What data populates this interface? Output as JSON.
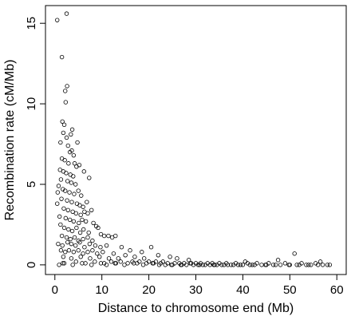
{
  "chart_data": {
    "type": "scatter",
    "title": "",
    "xlabel": "Distance to chromosome end (Mb)",
    "ylabel": "Recombination rate (cM/Mb)",
    "xlim": [
      -2,
      62
    ],
    "ylim": [
      -0.6,
      16.1
    ],
    "xticks": [
      0,
      10,
      20,
      30,
      40,
      50,
      60
    ],
    "yticks": [
      0,
      5,
      10,
      15
    ],
    "grid": false,
    "legend": "none",
    "marker": "open-circle",
    "marker_color": "#000000",
    "points": [
      [
        0.5,
        15.2
      ],
      [
        2.5,
        15.6
      ],
      [
        1.5,
        12.9
      ],
      [
        2.6,
        11.1
      ],
      [
        2.2,
        10.8
      ],
      [
        2.3,
        10.1
      ],
      [
        1.6,
        8.9
      ],
      [
        2.0,
        8.7
      ],
      [
        1.8,
        8.2
      ],
      [
        3.4,
        8.1
      ],
      [
        3.7,
        8.4
      ],
      [
        2.5,
        7.9
      ],
      [
        1.2,
        7.6
      ],
      [
        2.8,
        7.4
      ],
      [
        4.8,
        7.6
      ],
      [
        3.2,
        7.0
      ],
      [
        3.6,
        7.1
      ],
      [
        4.0,
        6.8
      ],
      [
        1.5,
        6.6
      ],
      [
        2.1,
        6.5
      ],
      [
        2.9,
        6.3
      ],
      [
        4.2,
        6.3
      ],
      [
        4.6,
        6.1
      ],
      [
        5.2,
        6.2
      ],
      [
        1.1,
        5.9
      ],
      [
        1.8,
        5.8
      ],
      [
        2.4,
        5.7
      ],
      [
        3.3,
        5.6
      ],
      [
        3.9,
        5.5
      ],
      [
        1.3,
        5.3
      ],
      [
        2.7,
        5.2
      ],
      [
        3.5,
        5.1
      ],
      [
        4.4,
        5.0
      ],
      [
        6.2,
        5.8
      ],
      [
        7.3,
        5.4
      ],
      [
        0.8,
        4.9
      ],
      [
        1.7,
        4.7
      ],
      [
        2.2,
        4.6
      ],
      [
        3.1,
        4.5
      ],
      [
        4.1,
        4.4
      ],
      [
        5.0,
        4.6
      ],
      [
        5.6,
        4.3
      ],
      [
        0.6,
        4.5
      ],
      [
        1.4,
        4.1
      ],
      [
        2.6,
        4.0
      ],
      [
        3.6,
        3.9
      ],
      [
        4.7,
        3.8
      ],
      [
        5.3,
        3.7
      ],
      [
        6.0,
        3.6
      ],
      [
        6.8,
        3.9
      ],
      [
        0.5,
        3.8
      ],
      [
        1.9,
        3.5
      ],
      [
        2.8,
        3.4
      ],
      [
        3.8,
        3.3
      ],
      [
        4.5,
        3.2
      ],
      [
        5.5,
        3.1
      ],
      [
        6.3,
        3.3
      ],
      [
        7.0,
        3.2
      ],
      [
        7.8,
        3.4
      ],
      [
        1.0,
        3.0
      ],
      [
        2.3,
        2.9
      ],
      [
        3.2,
        2.8
      ],
      [
        4.0,
        2.7
      ],
      [
        5.1,
        2.6
      ],
      [
        5.8,
        2.8
      ],
      [
        6.6,
        2.7
      ],
      [
        8.2,
        2.6
      ],
      [
        8.8,
        2.4
      ],
      [
        1.2,
        2.5
      ],
      [
        2.0,
        2.3
      ],
      [
        2.9,
        2.2
      ],
      [
        3.7,
        2.1
      ],
      [
        4.6,
        2.3
      ],
      [
        5.4,
        2.0
      ],
      [
        6.1,
        2.2
      ],
      [
        7.2,
        2.0
      ],
      [
        9.2,
        2.3
      ],
      [
        9.8,
        1.9
      ],
      [
        1.5,
        1.8
      ],
      [
        2.5,
        1.7
      ],
      [
        3.3,
        1.6
      ],
      [
        4.2,
        1.7
      ],
      [
        5.0,
        1.5
      ],
      [
        6.0,
        1.6
      ],
      [
        7.0,
        1.7
      ],
      [
        8.0,
        1.5
      ],
      [
        10.5,
        1.8
      ],
      [
        11.4,
        1.8
      ],
      [
        12.2,
        1.7
      ],
      [
        12.9,
        1.8
      ],
      [
        0.7,
        1.3
      ],
      [
        1.6,
        1.2
      ],
      [
        2.7,
        1.4
      ],
      [
        3.5,
        1.3
      ],
      [
        4.4,
        1.2
      ],
      [
        5.3,
        1.4
      ],
      [
        6.3,
        1.1
      ],
      [
        7.4,
        1.3
      ],
      [
        8.6,
        1.2
      ],
      [
        9.7,
        1.1
      ],
      [
        11.0,
        1.2
      ],
      [
        14.2,
        1.1
      ],
      [
        16.0,
        0.9
      ],
      [
        18.5,
        0.8
      ],
      [
        20.5,
        1.1
      ],
      [
        1.3,
        0.9
      ],
      [
        2.2,
        0.8
      ],
      [
        3.0,
        0.9
      ],
      [
        4.0,
        0.8
      ],
      [
        5.0,
        0.9
      ],
      [
        6.0,
        0.7
      ],
      [
        7.0,
        0.8
      ],
      [
        8.0,
        0.9
      ],
      [
        9.0,
        0.7
      ],
      [
        10.2,
        0.8
      ],
      [
        12.5,
        0.7
      ],
      [
        15.0,
        0.6
      ],
      [
        17.0,
        0.5
      ],
      [
        22.0,
        0.6
      ],
      [
        24.5,
        0.5
      ],
      [
        1.8,
        0.5
      ],
      [
        3.5,
        0.4
      ],
      [
        5.5,
        0.5
      ],
      [
        7.5,
        0.4
      ],
      [
        9.5,
        0.5
      ],
      [
        11.5,
        0.4
      ],
      [
        13.5,
        0.4
      ],
      [
        19.0,
        0.4
      ],
      [
        26.0,
        0.4
      ],
      [
        28.5,
        0.3
      ],
      [
        51.0,
        0.7
      ],
      [
        47.5,
        0.3
      ],
      [
        40.5,
        0.2
      ],
      [
        56.5,
        0.2
      ],
      [
        2.0,
        0.1
      ],
      [
        4.5,
        0.2
      ],
      [
        6.5,
        0.1
      ],
      [
        8.5,
        0.2
      ],
      [
        10.5,
        0.1
      ],
      [
        12.0,
        0.2
      ],
      [
        13.0,
        0.1
      ],
      [
        14.0,
        0.2
      ],
      [
        15.5,
        0.1
      ],
      [
        16.5,
        0.2
      ],
      [
        17.5,
        0.1
      ],
      [
        18.0,
        0.2
      ],
      [
        19.5,
        0.1
      ],
      [
        20.0,
        0.2
      ],
      [
        21.0,
        0.1
      ],
      [
        21.5,
        0.2
      ],
      [
        22.5,
        0.1
      ],
      [
        23.0,
        0.2
      ],
      [
        23.5,
        0.0
      ],
      [
        24.0,
        0.1
      ],
      [
        25.0,
        0.0
      ],
      [
        25.5,
        0.1
      ],
      [
        26.5,
        0.1
      ],
      [
        27.0,
        0.0
      ],
      [
        27.5,
        0.1
      ],
      [
        28.0,
        0.0
      ],
      [
        29.0,
        0.1
      ],
      [
        29.5,
        0.0
      ],
      [
        30.0,
        0.1
      ],
      [
        30.5,
        0.0
      ],
      [
        31.0,
        0.1
      ],
      [
        31.5,
        0.0
      ],
      [
        32.0,
        0.0
      ],
      [
        32.5,
        0.1
      ],
      [
        33.0,
        0.0
      ],
      [
        33.5,
        0.1
      ],
      [
        34.0,
        0.0
      ],
      [
        34.5,
        0.0
      ],
      [
        35.0,
        0.1
      ],
      [
        35.5,
        0.0
      ],
      [
        36.0,
        0.0
      ],
      [
        36.5,
        0.1
      ],
      [
        37.5,
        0.0
      ],
      [
        38.0,
        0.0
      ],
      [
        38.5,
        0.1
      ],
      [
        39.0,
        0.0
      ],
      [
        40.0,
        0.0
      ],
      [
        41.0,
        0.1
      ],
      [
        41.5,
        0.0
      ],
      [
        42.5,
        0.0
      ],
      [
        43.0,
        0.1
      ],
      [
        44.0,
        0.0
      ],
      [
        45.0,
        0.0
      ],
      [
        45.5,
        0.1
      ],
      [
        46.5,
        0.0
      ],
      [
        48.0,
        0.0
      ],
      [
        49.0,
        0.1
      ],
      [
        50.0,
        0.0
      ],
      [
        51.5,
        0.0
      ],
      [
        52.5,
        0.1
      ],
      [
        53.5,
        0.0
      ],
      [
        54.5,
        0.0
      ],
      [
        55.5,
        0.1
      ],
      [
        57.0,
        0.0
      ],
      [
        58.5,
        0.0
      ],
      [
        0.9,
        0.0
      ],
      [
        1.7,
        0.1
      ],
      [
        3.8,
        0.0
      ],
      [
        5.8,
        0.1
      ],
      [
        7.8,
        0.0
      ],
      [
        9.8,
        0.1
      ],
      [
        11.0,
        0.0
      ],
      [
        12.8,
        0.1
      ],
      [
        14.8,
        0.0
      ],
      [
        16.8,
        0.1
      ],
      [
        18.8,
        0.0
      ],
      [
        20.8,
        0.1
      ],
      [
        22.2,
        0.0
      ],
      [
        24.8,
        0.0
      ],
      [
        26.8,
        0.0
      ],
      [
        28.8,
        0.1
      ],
      [
        30.8,
        0.0
      ],
      [
        33.8,
        0.0
      ],
      [
        36.8,
        0.0
      ],
      [
        39.5,
        0.0
      ],
      [
        42.0,
        0.0
      ],
      [
        44.8,
        0.0
      ],
      [
        47.0,
        0.0
      ],
      [
        49.8,
        0.0
      ],
      [
        52.0,
        0.0
      ],
      [
        54.0,
        0.0
      ],
      [
        56.0,
        0.0
      ],
      [
        58.0,
        0.0
      ]
    ]
  }
}
